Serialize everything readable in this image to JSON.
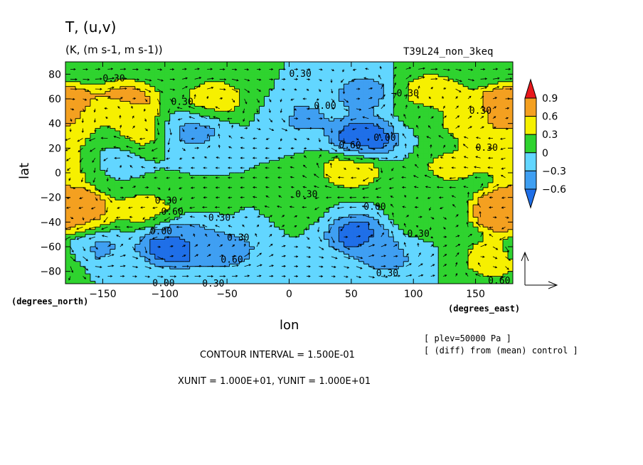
{
  "chart_data": {
    "type": "heatmap",
    "title": "T, (u,v)",
    "units": "(K, (m s-1, m s-1))",
    "run_id": "T39L24_non_3keq",
    "xlabel": "lon",
    "ylabel": "lat",
    "x_unit_label": "(degrees_east)",
    "y_unit_label": "(degrees_north)",
    "xlim": [
      -180,
      180
    ],
    "ylim": [
      -90,
      90
    ],
    "x_ticks": [
      -150,
      -100,
      -50,
      0,
      50,
      100,
      150
    ],
    "y_ticks": [
      -80,
      -60,
      -40,
      -20,
      0,
      20,
      40,
      60,
      80
    ],
    "x_tick_labels": [
      "−150",
      "−100",
      "−50",
      "0",
      "50",
      "100",
      "150"
    ],
    "y_tick_labels": [
      "−80",
      "−60",
      "−40",
      "−20",
      "0",
      "20",
      "40",
      "60",
      "80"
    ],
    "colorbar": {
      "levels": [
        -0.6,
        -0.3,
        0,
        0.3,
        0.6,
        0.9
      ],
      "labels": [
        "−0.6",
        "−0.3",
        "0",
        "0.3",
        "0.6",
        "0.9"
      ],
      "colors": [
        "#1f6fe8",
        "#3f9ff2",
        "#62d6ff",
        "#2fd32f",
        "#f6f000",
        "#f4a020",
        "#e8181c"
      ]
    },
    "field": [
      {
        "lon": -180,
        "lat": 58,
        "value": 0.55
      },
      {
        "lon": -180,
        "lat": 34,
        "value": 0.55
      },
      {
        "lon": -175,
        "lat": 8,
        "value": 0.45
      },
      {
        "lon": -180,
        "lat": -32,
        "value": 1.0
      },
      {
        "lon": -170,
        "lat": -30,
        "value": 0.55
      },
      {
        "lon": -160,
        "lat": -60,
        "value": -0.38
      },
      {
        "lon": -150,
        "lat": 15,
        "value": -0.32
      },
      {
        "lon": -150,
        "lat": 38,
        "value": 0.15
      },
      {
        "lon": -130,
        "lat": 60,
        "value": 0.65
      },
      {
        "lon": -125,
        "lat": 35,
        "value": 0.55
      },
      {
        "lon": -115,
        "lat": -30,
        "value": 0.4
      },
      {
        "lon": -95,
        "lat": -60,
        "value": -0.7
      },
      {
        "lon": -78,
        "lat": 35,
        "value": -0.4
      },
      {
        "lon": -75,
        "lat": -55,
        "value": -0.6
      },
      {
        "lon": -60,
        "lat": 60,
        "value": 0.5
      },
      {
        "lon": -50,
        "lat": -62,
        "value": -0.4
      },
      {
        "lon": -60,
        "lat": -35,
        "value": 0.05
      },
      {
        "lon": -20,
        "lat": -40,
        "value": -0.05
      },
      {
        "lon": 10,
        "lat": 45,
        "value": -0.3
      },
      {
        "lon": 5,
        "lat": -30,
        "value": 0.15
      },
      {
        "lon": 50,
        "lat": 3,
        "value": 0.55
      },
      {
        "lon": 60,
        "lat": 28,
        "value": -0.85
      },
      {
        "lon": 60,
        "lat": 65,
        "value": -0.4
      },
      {
        "lon": 55,
        "lat": -50,
        "value": -0.7
      },
      {
        "lon": 80,
        "lat": -70,
        "value": -0.3
      },
      {
        "lon": 100,
        "lat": -35,
        "value": 0.2
      },
      {
        "lon": 110,
        "lat": 50,
        "value": 0.15
      },
      {
        "lon": 130,
        "lat": 5,
        "value": 0.35
      },
      {
        "lon": 115,
        "lat": 65,
        "value": 0.55
      },
      {
        "lon": 150,
        "lat": 45,
        "value": 0.35
      },
      {
        "lon": 160,
        "lat": 40,
        "value": 0.6
      },
      {
        "lon": 175,
        "lat": 48,
        "value": 1.0
      },
      {
        "lon": 178,
        "lat": 20,
        "value": 0.55
      },
      {
        "lon": 175,
        "lat": -30,
        "value": 0.7
      },
      {
        "lon": 165,
        "lat": -70,
        "value": 0.55
      }
    ],
    "contour_labels": [
      {
        "lon": -150,
        "lat": 74,
        "text": "0.30"
      },
      {
        "lon": -95,
        "lat": 55,
        "text": "0.30"
      },
      {
        "lon": 0,
        "lat": 78,
        "text": "0.30"
      },
      {
        "lon": 20,
        "lat": 52,
        "text": "0.00"
      },
      {
        "lon": 82,
        "lat": 62,
        "text": "−0.30"
      },
      {
        "lon": 145,
        "lat": 48,
        "text": "0.30"
      },
      {
        "lon": 40,
        "lat": 20,
        "text": "0.60"
      },
      {
        "lon": 68,
        "lat": 26,
        "text": "0.00"
      },
      {
        "lon": 150,
        "lat": 18,
        "text": "0.30"
      },
      {
        "lon": 5,
        "lat": -20,
        "text": "0.30"
      },
      {
        "lon": -108,
        "lat": -25,
        "text": "0.30"
      },
      {
        "lon": -103,
        "lat": -34,
        "text": "0.60"
      },
      {
        "lon": -65,
        "lat": -39,
        "text": "0.30"
      },
      {
        "lon": -112,
        "lat": -50,
        "text": "0.00"
      },
      {
        "lon": -50,
        "lat": -55,
        "text": "0.30"
      },
      {
        "lon": -55,
        "lat": -73,
        "text": "0.60"
      },
      {
        "lon": 60,
        "lat": -30,
        "text": "0.00"
      },
      {
        "lon": 95,
        "lat": -52,
        "text": "0.30"
      },
      {
        "lon": 70,
        "lat": -84,
        "text": "0.30"
      },
      {
        "lon": -110,
        "lat": -92,
        "text": "0.00"
      },
      {
        "lon": -70,
        "lat": -98,
        "text": "0.30"
      },
      {
        "lon": 160,
        "lat": -90,
        "text": "0.60"
      }
    ]
  },
  "annotations": {
    "contour_interval": "CONTOUR INTERVAL = 1.500E-01",
    "units_line": "XUNIT = 1.000E+01, YUNIT = 1.000E+01",
    "plev": "[ plev=50000 Pa ]",
    "diff": "[ (diff) from (mean) control ]"
  }
}
